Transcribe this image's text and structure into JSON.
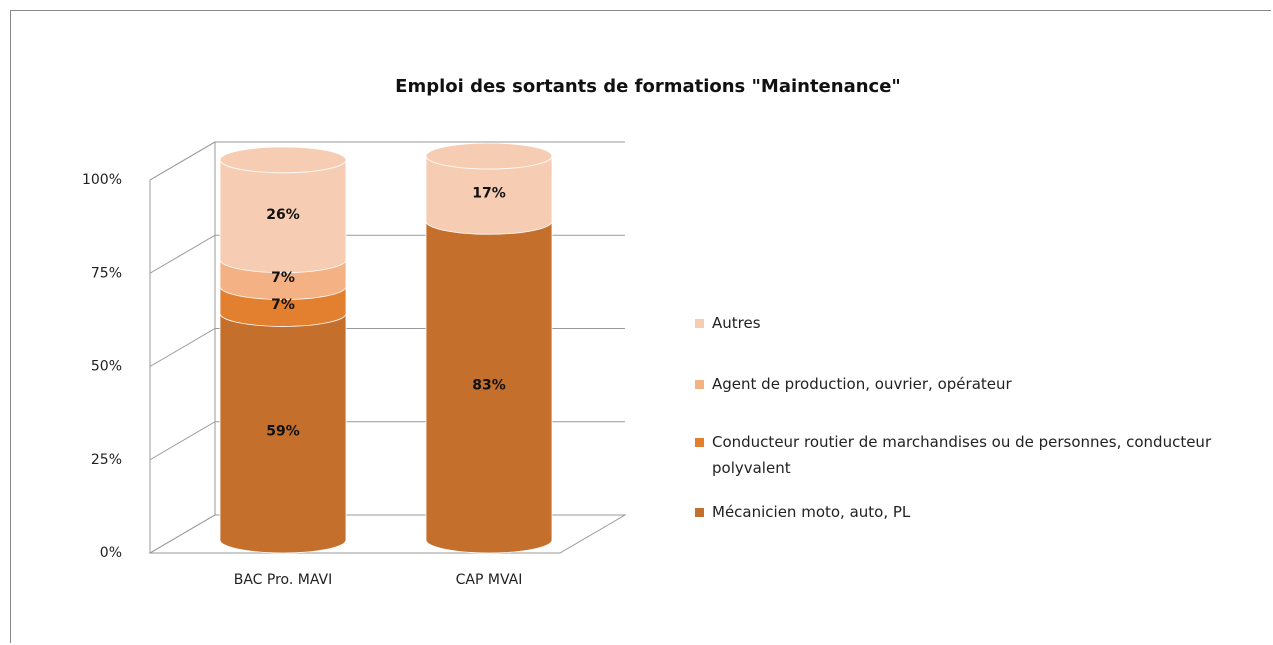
{
  "chart_data": {
    "type": "bar3d-stacked",
    "title": "Emploi des sortants de formations \"Maintenance\"",
    "categories": [
      "BAC Pro. MAVI",
      "CAP MVAI"
    ],
    "series": [
      {
        "name": "Mécanicien moto, auto, PL",
        "color": "#c46f2c",
        "values": [
          59,
          83
        ],
        "value_labels": [
          "59%",
          "83%"
        ]
      },
      {
        "name": "Conducteur routier de marchandises ou de personnes, conducteur polyvalent",
        "color": "#e2802f",
        "values": [
          7,
          0
        ],
        "value_labels": [
          "7%",
          null
        ]
      },
      {
        "name": "Agent de production, ouvrier, opérateur",
        "color": "#f4b183",
        "values": [
          7,
          0
        ],
        "value_labels": [
          "7%",
          null
        ]
      },
      {
        "name": "Autres",
        "color": "#f6cdb3",
        "values": [
          26,
          17
        ],
        "value_labels": [
          "26%",
          "17%"
        ]
      }
    ],
    "ylim": [
      0,
      100
    ],
    "yticks": [
      {
        "value": 0,
        "label": "0%"
      },
      {
        "value": 25,
        "label": "25%"
      },
      {
        "value": 50,
        "label": "50%"
      },
      {
        "value": 75,
        "label": "75%"
      },
      {
        "value": 100,
        "label": "100%"
      }
    ],
    "grid": true,
    "legend": "right"
  }
}
